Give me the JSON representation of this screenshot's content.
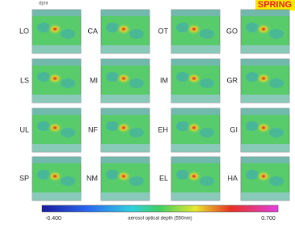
{
  "header": {
    "corner_text": "dpni",
    "season": "SPRING"
  },
  "panels": [
    "LO",
    "CA",
    "OT",
    "GO",
    "LS",
    "MI",
    "IM",
    "GR",
    "UL",
    "NF",
    "EH",
    "GI",
    "SP",
    "NM",
    "EL",
    "HA"
  ],
  "colorbar": {
    "min_label": "-0.400",
    "title": "aerosol optical depth (550nm)",
    "max_label": "0.700"
  }
}
